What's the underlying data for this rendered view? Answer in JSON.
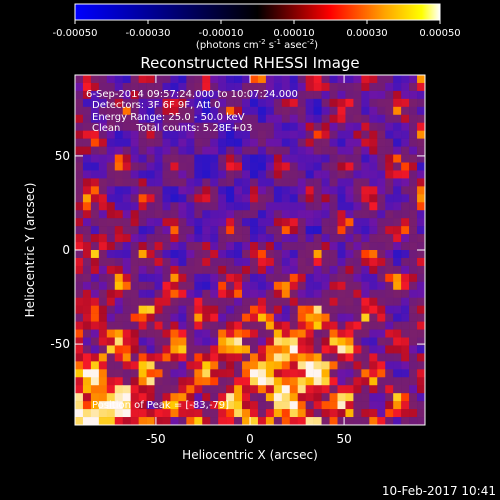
{
  "chart_data": {
    "type": "heatmap",
    "title": "Reconstructed RHESSI Image",
    "xlabel": "Heliocentric X (arcsec)",
    "ylabel": "Heliocentric Y (arcsec)",
    "xlim": [
      -93,
      93
    ],
    "ylim": [
      -93,
      93
    ],
    "x_ticks": [
      -50,
      0,
      50
    ],
    "y_ticks": [
      -50,
      0,
      50
    ],
    "colorbar": {
      "range": [
        -0.0005,
        0.0005
      ],
      "ticks": [
        "-0.00050",
        "-0.00030",
        "-0.00010",
        "0.00010",
        "0.00030",
        "0.00050"
      ],
      "unit_label": "(photons cm",
      "unit_exp1": "-2",
      "unit_mid": " s",
      "unit_exp2": "-1",
      "unit_mid2": " asec",
      "unit_exp3": "-2",
      "unit_end": ")"
    },
    "annotations": {
      "time": "6-Sep-2014 09:57:24.000 to 10:07:24.000",
      "detectors": "Detectors: 3F 6F 9F, Att 0",
      "energy": "Energy Range: 25.0 - 50.0 keV",
      "method": "Clean     Total counts: 5.28E+03",
      "peak": "Position of Peak = [-83,-79]"
    },
    "footer_timestamp": "10-Feb-2017 10:41",
    "peak_position": [
      -83,
      -79
    ],
    "colors": {
      "background": "#000000",
      "colormap": [
        "#0000ff",
        "#000000",
        "#ff0000",
        "#ffa500",
        "#ffff00",
        "#ffffff"
      ]
    }
  }
}
